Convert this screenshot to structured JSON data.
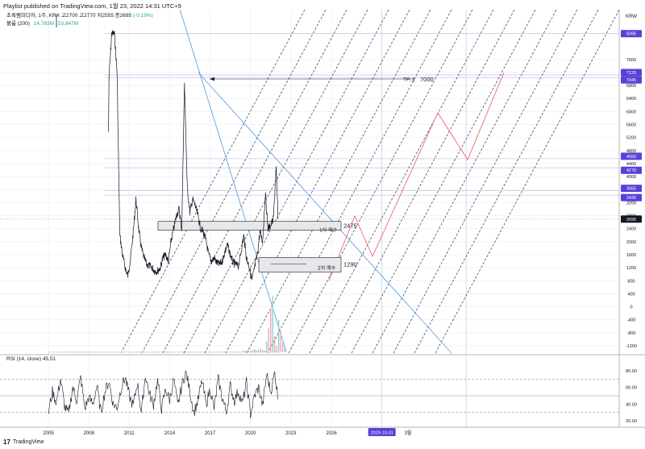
{
  "header": {
    "published_line": "Playlist published on TradingView.com, 1월 23, 2022 14:31 UTC+9"
  },
  "legend": {
    "symbol": "초록뱀미디어, 1주, KRX",
    "ohlc": "고2700  고2770  저2555  종2695",
    "change": "(-0.19%)",
    "volume_label": "볼륨 (200)",
    "volume_value": "14.783M",
    "volume_ma": "53.847M"
  },
  "rsi_legend": {
    "label": "RSI (14, close)",
    "value": "45.51"
  },
  "footer": {
    "brand": "TradingView",
    "logo": "17"
  },
  "axis": {
    "currency": "KRW",
    "price_ticks": [
      "7600",
      "7200",
      "6800",
      "6400",
      "6000",
      "5600",
      "5200",
      "4800",
      "4400",
      "4000",
      "3600",
      "3200",
      "2800",
      "2400",
      "2000",
      "1600",
      "1200",
      "800",
      "400",
      "0",
      "-400",
      "-800",
      "-1200"
    ],
    "rsi_ticks": [
      "80.00",
      "60.00",
      "40.00",
      "20.00"
    ],
    "x_ticks": [
      "2005",
      "2008",
      "2011",
      "2014",
      "2017",
      "2020",
      "2023",
      "2026",
      "3월"
    ],
    "x_date_badge": "2029-10-01"
  },
  "price_badges": [
    {
      "text": "8395",
      "color": "#5b3fd6"
    },
    {
      "text": "7125",
      "color": "#5b3fd6"
    },
    {
      "text": "7045",
      "color": "#5b3fd6"
    },
    {
      "text": "4550",
      "color": "#5b3fd6"
    },
    {
      "text": "4270",
      "color": "#5b3fd6"
    },
    {
      "text": "3565",
      "color": "#5b3fd6"
    },
    {
      "text": "3430",
      "color": "#5b3fd6"
    },
    {
      "text": "2695",
      "color": "#131722"
    }
  ],
  "annotations": {
    "tp_label": "TP..1",
    "tp_value": "7000",
    "buy1_label": "1차 매수",
    "buy1_value": "2475",
    "buy2_label": "2차 매수",
    "buy2_value": "1290"
  },
  "chart_data": [
    {
      "type": "line",
      "title": "",
      "xlabel": "",
      "ylabel": "KRW",
      "ylim": [
        -1400,
        8700
      ],
      "x": [
        2004.7,
        2004.9,
        2005.1,
        2005.3,
        2005.5,
        2005.7,
        2005.9,
        2006.1,
        2006.3,
        2006.5,
        2006.7,
        2006.9,
        2007.1,
        2007.3,
        2007.5,
        2007.7,
        2007.9,
        2008.1,
        2008.3,
        2008.5,
        2008.7,
        2008.9,
        2009.1,
        2009.3,
        2009.5,
        2009.7,
        2009.9,
        2010.1,
        2010.3,
        2010.5,
        2010.7,
        2010.9,
        2011.1,
        2011.3,
        2011.5,
        2011.7,
        2011.9,
        2012.1,
        2012.3,
        2012.5,
        2012.7,
        2012.9,
        2013.1,
        2013.3,
        2013.5,
        2013.7,
        2013.9,
        2014.1,
        2014.3,
        2014.5,
        2014.7,
        2014.9,
        2015.1,
        2015.3,
        2015.5,
        2015.7,
        2015.9,
        2016.1,
        2016.3,
        2016.5,
        2016.7,
        2016.9,
        2017.1,
        2017.3,
        2017.5,
        2017.7,
        2017.9,
        2018.1,
        2018.3,
        2018.5,
        2018.7,
        2018.9,
        2019.1,
        2019.3,
        2019.5,
        2019.7,
        2019.9,
        2020.1,
        2020.3,
        2020.5,
        2020.7,
        2020.9,
        2021.1,
        2021.3,
        2021.5,
        2021.7,
        2021.9,
        2022.05
      ],
      "series": [
        {
          "values": [
            -1300,
            -1300,
            -1300,
            -1300,
            -1300,
            -1300,
            -1300,
            -1300,
            -1300,
            -1300,
            -1300,
            -1300,
            -1300,
            -1300,
            -1300,
            -1300,
            -1300,
            -1300,
            -1300,
            -1300,
            -1300,
            -1300,
            -1300,
            -1300,
            7045,
            8395,
            8395,
            7200,
            2200,
            1600,
            1200,
            950,
            1500,
            2300,
            3300,
            2400,
            1800,
            1500,
            1300,
            1250,
            1200,
            1100,
            1100,
            1200,
            1500,
            1600,
            1400,
            2000,
            2400,
            2800,
            3000,
            2400,
            6900,
            3700,
            2900,
            3300,
            3100,
            2800,
            2400,
            2300,
            2000,
            1600,
            1400,
            1500,
            1350,
            1300,
            1400,
            1700,
            1900,
            1600,
            1350,
            1300,
            1250,
            1700,
            2200,
            1500,
            1250,
            800,
            1200,
            1600,
            2300,
            2000,
            3500,
            2400,
            2500,
            2700,
            4270,
            2695
          ],
          "color": "#131722"
        }
      ],
      "levels": [
        8395,
        7125,
        7045,
        4550,
        4270,
        3565,
        3430,
        2695,
        2475,
        1290
      ]
    },
    {
      "type": "line",
      "title": "",
      "xlabel": "",
      "ylabel": "RSI",
      "ylim": [
        20,
        85
      ],
      "x": [
        2005.0,
        2005.3,
        2005.6,
        2005.9,
        2006.2,
        2006.5,
        2006.8,
        2007.1,
        2007.4,
        2007.7,
        2008.0,
        2008.3,
        2008.6,
        2008.9,
        2009.2,
        2009.5,
        2009.8,
        2010.1,
        2010.4,
        2010.7,
        2011.0,
        2011.3,
        2011.6,
        2011.9,
        2012.2,
        2012.5,
        2012.8,
        2013.1,
        2013.4,
        2013.7,
        2014.0,
        2014.3,
        2014.6,
        2014.9,
        2015.2,
        2015.5,
        2015.8,
        2016.1,
        2016.4,
        2016.7,
        2017.0,
        2017.3,
        2017.6,
        2017.9,
        2018.2,
        2018.5,
        2018.8,
        2019.1,
        2019.4,
        2019.7,
        2020.0,
        2020.3,
        2020.6,
        2020.9,
        2021.2,
        2021.5,
        2021.8,
        2022.05
      ],
      "series": [
        {
          "values": [
            30,
            55,
            42,
            70,
            38,
            28,
            60,
            45,
            72,
            35,
            48,
            40,
            62,
            30,
            55,
            68,
            40,
            36,
            60,
            72,
            50,
            38,
            66,
            30,
            75,
            52,
            40,
            68,
            34,
            58,
            45,
            70,
            38,
            62,
            80,
            55,
            30,
            44,
            68,
            40,
            58,
            35,
            70,
            48,
            30,
            62,
            44,
            56,
            40,
            66,
            28,
            50,
            60,
            38,
            76,
            55,
            78,
            45.51
          ],
          "color": "#131722"
        }
      ],
      "bands": [
        70,
        50,
        30
      ]
    }
  ]
}
